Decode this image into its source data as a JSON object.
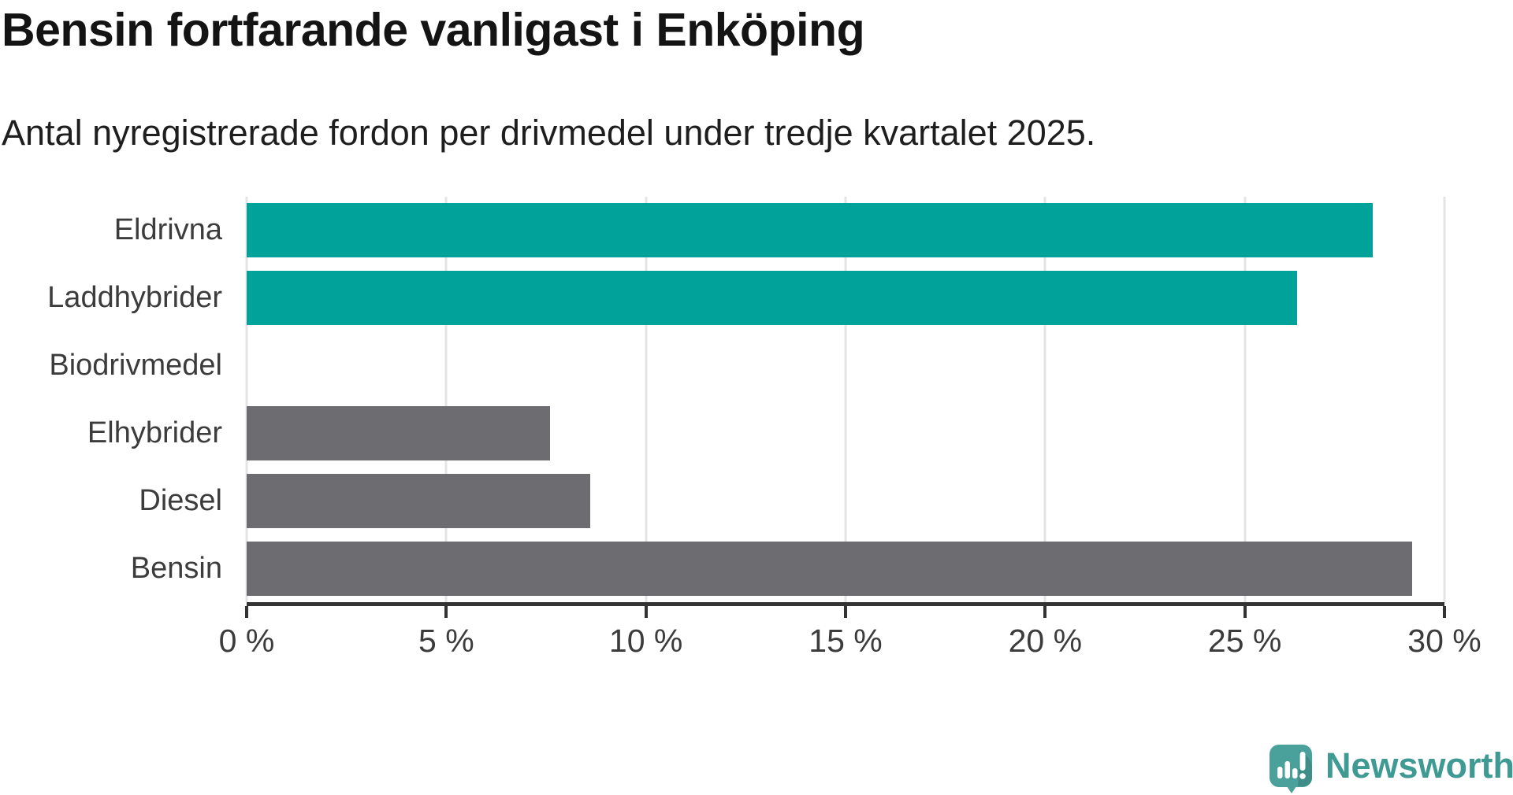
{
  "title": "Bensin fortfarande vanligast i Enköping",
  "subtitle": "Antal nyregistrerade fordon per drivmedel under tredje kvartalet 2025.",
  "colors": {
    "highlight_bar": "#00a29a",
    "muted_bar": "#6c6c71",
    "axis": "#333333",
    "gridline": "#e4e4e4",
    "label_text": "#3c3c3c",
    "logo_teal": "#3f9a94",
    "logo_icon_teal": "#4aa19b"
  },
  "chart_data": {
    "type": "bar",
    "orientation": "horizontal",
    "title": "Bensin fortfarande vanligast i Enköping",
    "subtitle": "Antal nyregistrerade fordon per drivmedel under tredje kvartalet 2025.",
    "categories": [
      "Eldrivna",
      "Laddhybrider",
      "Biodrivmedel",
      "Elhybrider",
      "Diesel",
      "Bensin"
    ],
    "values": [
      28.2,
      26.3,
      0,
      7.6,
      8.6,
      29.2
    ],
    "unit": "%",
    "bar_colors": [
      "#00a29a",
      "#00a29a",
      "#6c6c71",
      "#6c6c71",
      "#6c6c71",
      "#6c6c71"
    ],
    "xlim": [
      0,
      30
    ],
    "x_ticks": [
      0,
      5,
      10,
      15,
      20,
      25,
      30
    ],
    "x_tick_labels": [
      "0 %",
      "5 %",
      "10 %",
      "15 %",
      "20 %",
      "25 %",
      "30 %"
    ],
    "grid": "vertical",
    "legend": "none"
  },
  "branding": {
    "logo_text": "Newsworthy"
  }
}
